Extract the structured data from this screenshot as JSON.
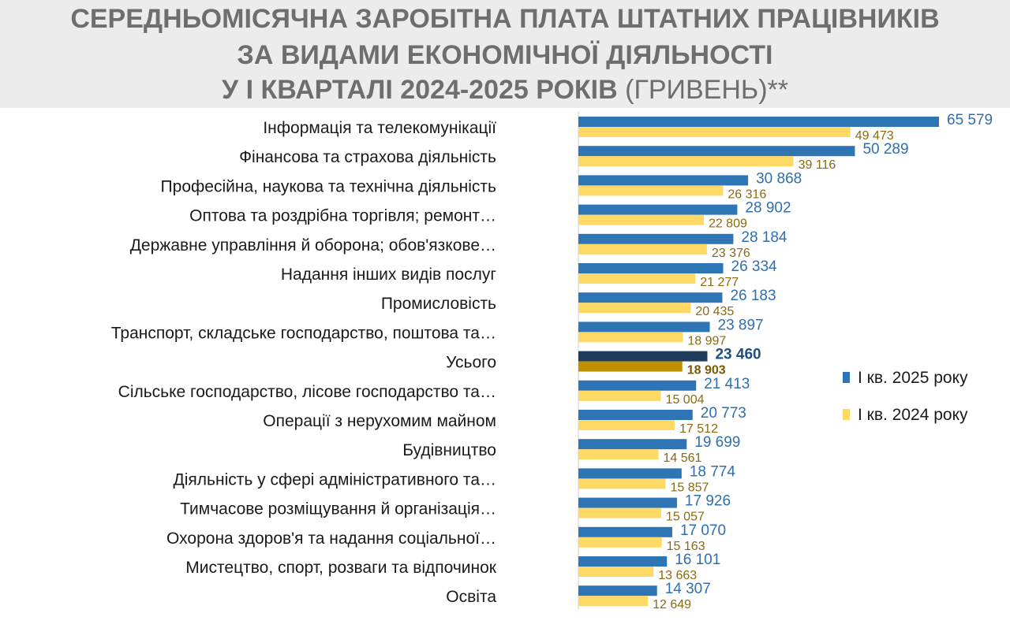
{
  "title": {
    "line1": "СЕРЕДНЬОМІСЯЧНА ЗАРОБІТНА ПЛАТА ШТАТНИХ ПРАЦІВНИКІВ",
    "line2": "ЗА ВИДАМИ ЕКОНОМІЧНОЇ ДІЯЛЬНОСТІ",
    "line3_main": "У І КВАРТАЛІ 2024-2025 РОКІВ",
    "line3_suffix": " (ГРИВЕНЬ)**"
  },
  "chart_data": {
    "type": "bar",
    "orientation": "horizontal",
    "categories": [
      "Інформація та телекомунікації",
      "Фінансова та страхова діяльність",
      "Професійна, наукова та технічна діяльність",
      "Оптова та роздрібна торгівля; ремонт…",
      "Державне управління й оборона; обов'язкове…",
      "Надання інших видів послуг",
      "Промисловість",
      "Транспорт, складське господарство, поштова та…",
      "Усього",
      "Сільське господарство, лісове господарство та…",
      "Операції з нерухомим майном",
      "Будівництво",
      "Діяльність у сфері адміністративного та…",
      "Тимчасове розміщування й організація…",
      "Охорона здоров'я та надання соціальної…",
      "Мистецтво, спорт, розваги та відпочинок",
      "Освіта"
    ],
    "series": [
      {
        "name": "І кв. 2025 року",
        "color": "#2e75b6",
        "highlight_color": "#1f3c5a",
        "values": [
          65579,
          50289,
          30868,
          28902,
          28184,
          26334,
          26183,
          23897,
          23460,
          21413,
          20773,
          19699,
          18774,
          17926,
          17070,
          16101,
          14307
        ],
        "labels": [
          "65 579",
          "50 289",
          "30 868",
          "28 902",
          "28 184",
          "26 334",
          "26 183",
          "23 897",
          "23 460",
          "21 413",
          "20 773",
          "19 699",
          "18 774",
          "17 926",
          "17 070",
          "16 101",
          "14 307"
        ]
      },
      {
        "name": "І кв. 2024 року",
        "color": "#ffd966",
        "highlight_color": "#bf9000",
        "values": [
          49473,
          39116,
          26316,
          22809,
          23376,
          21277,
          20435,
          18997,
          18903,
          15004,
          17512,
          14561,
          15857,
          15057,
          15163,
          13663,
          12649
        ],
        "labels": [
          "49 473",
          "39 116",
          "26 316",
          "22 809",
          "23 376",
          "21 277",
          "20 435",
          "18 997",
          "18 903",
          "15 004",
          "17 512",
          "14 561",
          "15 857",
          "15 057",
          "15 163",
          "13 663",
          "12 649"
        ]
      }
    ],
    "highlight_category": "Усього",
    "xlim": [
      0,
      70000
    ],
    "grid": false,
    "legend_position": "right"
  }
}
